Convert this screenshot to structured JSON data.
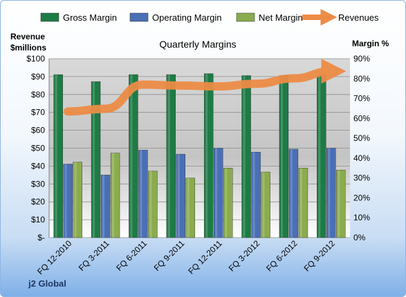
{
  "chart_data": {
    "type": "bar",
    "title": "Quarterly Margins",
    "categories": [
      "FQ 12-2010",
      "FQ 3-2011",
      "FQ 6-2011",
      "FQ 9-2011",
      "FQ 12-2011",
      "FQ 3-2012",
      "FQ 6-2012",
      "FQ 9-2012"
    ],
    "series": [
      {
        "name": "Gross Margin",
        "axis": "right",
        "unit": "%",
        "values": [
          82,
          78.5,
          82,
          82,
          82.5,
          81.5,
          81.5,
          82
        ],
        "color": "#1e7b45"
      },
      {
        "name": "Operating Margin",
        "axis": "right",
        "unit": "%",
        "values": [
          37,
          31.5,
          44,
          42,
          45,
          43,
          44.5,
          45
        ],
        "color": "#4a6fb5"
      },
      {
        "name": "Net Margin",
        "axis": "right",
        "unit": "%",
        "values": [
          38,
          42.5,
          33.5,
          30,
          35,
          33,
          35,
          34
        ],
        "color": "#8aac4e"
      },
      {
        "name": "Revenues",
        "type": "line",
        "axis": "left",
        "unit": "$millions",
        "values": [
          70.5,
          72,
          85.5,
          85,
          84.5,
          86,
          89,
          93
        ],
        "color": "#ed8c46"
      }
    ],
    "y_left": {
      "label": "Revenue $millions",
      "min": 0,
      "max": 100,
      "step": 10,
      "ticks": [
        "$-",
        "$10",
        "$20",
        "$30",
        "$40",
        "$50",
        "$60",
        "$70",
        "$80",
        "$90",
        "$100"
      ]
    },
    "y_right": {
      "label": "Margin %",
      "min": 0,
      "max": 90,
      "step": 10,
      "ticks": [
        "0%",
        "10%",
        "20%",
        "30%",
        "40%",
        "50%",
        "60%",
        "70%",
        "80%",
        "90%"
      ]
    },
    "legend": "top",
    "grid": true
  },
  "labels": {
    "left_axis_line1": "Revenue",
    "left_axis_line2": "$millions",
    "right_axis": "Margin %",
    "footer": "j2 Global"
  }
}
